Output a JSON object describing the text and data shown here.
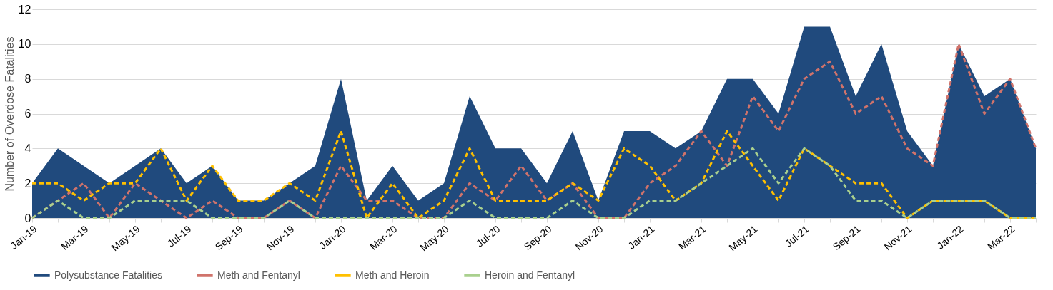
{
  "chart_data": {
    "type": "area",
    "ylabel": "Number of Overdose Fatalities",
    "categories": [
      "Jan-19",
      null,
      "Mar-19",
      null,
      "May-19",
      null,
      "Jul-19",
      null,
      "Sep-19",
      null,
      "Nov-19",
      null,
      "Jan-20",
      null,
      "Mar-20",
      null,
      "May-20",
      null,
      "Jul-20",
      null,
      "Sep-20",
      null,
      "Nov-20",
      null,
      "Jan-21",
      null,
      "Mar-21",
      null,
      "May-21",
      null,
      "Jul-21",
      null,
      "Sep-21",
      null,
      "Nov-21",
      null,
      "Jan-22",
      null,
      "Mar-22",
      null
    ],
    "ylim": [
      0,
      12
    ],
    "yticks": [
      0,
      2,
      4,
      6,
      8,
      10,
      12
    ],
    "grid": "y",
    "legend": "bottom",
    "series": [
      {
        "name": "Polysubstance Fatalities",
        "color": "#204a7d",
        "values": [
          2,
          4,
          3,
          2,
          3,
          4,
          2,
          3,
          1,
          1,
          2,
          3,
          8,
          1,
          3,
          1,
          2,
          7,
          4,
          4,
          2,
          5,
          1,
          5,
          5,
          4,
          5,
          8,
          8,
          6,
          11,
          11,
          7,
          10,
          5,
          3,
          10,
          7,
          8,
          4
        ]
      },
      {
        "name": "Meth and Fentanyl",
        "type": "line",
        "line_style": "dashed",
        "color": "#d0736b",
        "values": [
          0,
          1,
          2,
          0,
          2,
          1,
          0,
          1,
          0,
          0,
          1,
          0,
          3,
          1,
          1,
          0,
          0,
          2,
          1,
          3,
          1,
          2,
          0,
          0,
          2,
          3,
          5,
          3,
          7,
          5,
          8,
          9,
          6,
          7,
          4,
          3,
          10,
          6,
          8,
          4
        ]
      },
      {
        "name": "Meth and Heroin",
        "type": "line",
        "line_style": "dashed",
        "color": "#ffc000",
        "values": [
          2,
          2,
          1,
          2,
          2,
          4,
          1,
          3,
          1,
          1,
          2,
          1,
          5,
          0,
          2,
          0,
          1,
          4,
          1,
          1,
          1,
          2,
          1,
          4,
          3,
          1,
          2,
          5,
          3,
          1,
          4,
          3,
          2,
          2,
          0,
          1,
          1,
          1,
          0,
          0
        ]
      },
      {
        "name": "Heroin and Fentanyl",
        "type": "line",
        "line_style": "dashed",
        "color": "#a9d08e",
        "values": [
          0,
          1,
          0,
          0,
          1,
          1,
          1,
          0,
          0,
          0,
          1,
          0,
          0,
          0,
          0,
          0,
          0,
          1,
          0,
          0,
          0,
          1,
          0,
          0,
          1,
          1,
          2,
          3,
          4,
          2,
          4,
          3,
          1,
          1,
          0,
          1,
          1,
          1,
          0,
          0
        ]
      }
    ]
  }
}
